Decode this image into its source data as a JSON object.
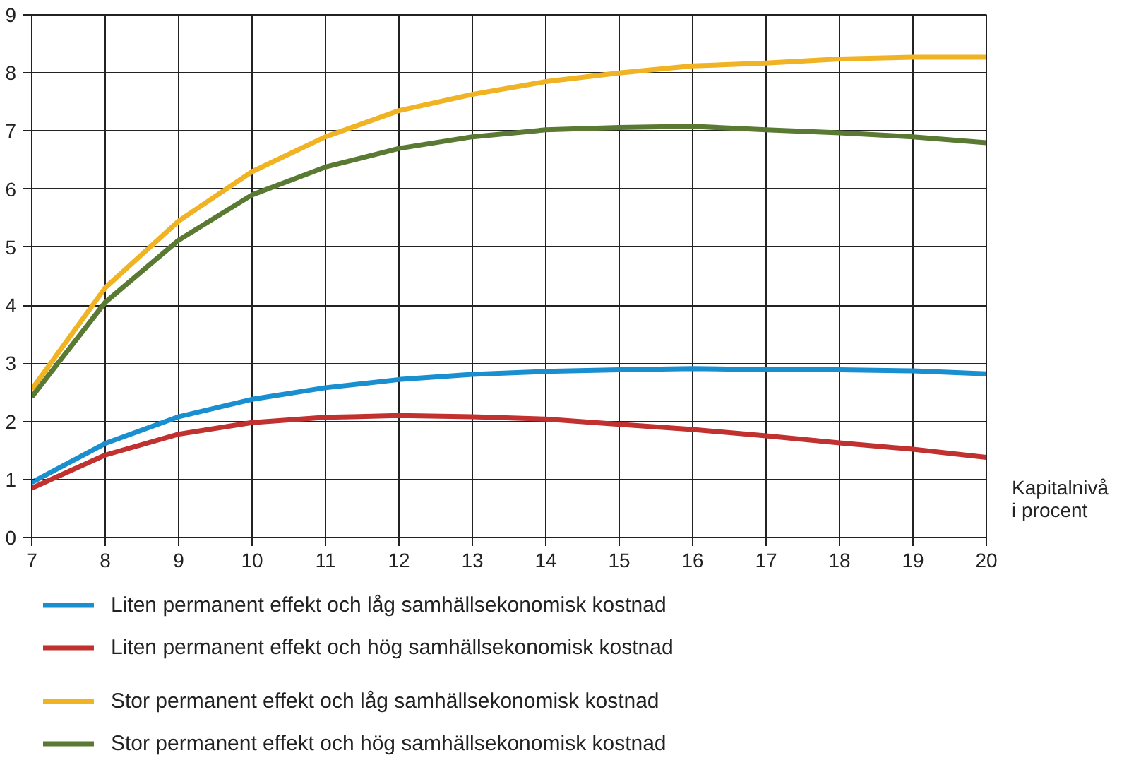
{
  "chart_data": {
    "type": "line",
    "xlabel": "Kapitalnivå i procent",
    "x": [
      7,
      8,
      9,
      10,
      11,
      12,
      13,
      14,
      15,
      16,
      17,
      18,
      19,
      20
    ],
    "xlim": [
      7,
      20
    ],
    "xticks": [
      7,
      8,
      9,
      10,
      11,
      12,
      13,
      14,
      15,
      16,
      17,
      18,
      19,
      20
    ],
    "ylim": [
      0,
      9
    ],
    "yticks": [
      0,
      1,
      2,
      3,
      4,
      5,
      6,
      7,
      8,
      9
    ],
    "grid": true,
    "legend": "bottom",
    "marker": "none",
    "line_style": "solid",
    "series": [
      {
        "name": "Liten permanent effekt och låg samhällsekonomisk kostnad",
        "color": "#1a8fd0",
        "values": [
          0.95,
          1.62,
          2.08,
          2.38,
          2.58,
          2.72,
          2.81,
          2.86,
          2.89,
          2.91,
          2.89,
          2.89,
          2.87,
          2.82
        ]
      },
      {
        "name": "Liten permanent effekt och hög samhällsekonomisk kostnad",
        "color": "#c0312f",
        "values": [
          0.85,
          1.42,
          1.78,
          1.98,
          2.07,
          2.1,
          2.08,
          2.04,
          1.95,
          1.86,
          1.75,
          1.63,
          1.52,
          1.38
        ]
      },
      {
        "name": "Stor permanent effekt och låg samhällsekonomisk kostnad",
        "color": "#f0b323",
        "values": [
          2.55,
          4.3,
          5.45,
          6.3,
          6.9,
          7.35,
          7.63,
          7.85,
          8.0,
          8.12,
          8.17,
          8.24,
          8.27,
          8.27
        ]
      },
      {
        "name": "Stor permanent effekt och hög samhällsekonomisk kostnad",
        "color": "#5a7a34",
        "values": [
          2.42,
          4.05,
          5.12,
          5.9,
          6.38,
          6.7,
          6.9,
          7.02,
          7.06,
          7.08,
          7.02,
          6.97,
          6.9,
          6.8
        ]
      }
    ]
  }
}
